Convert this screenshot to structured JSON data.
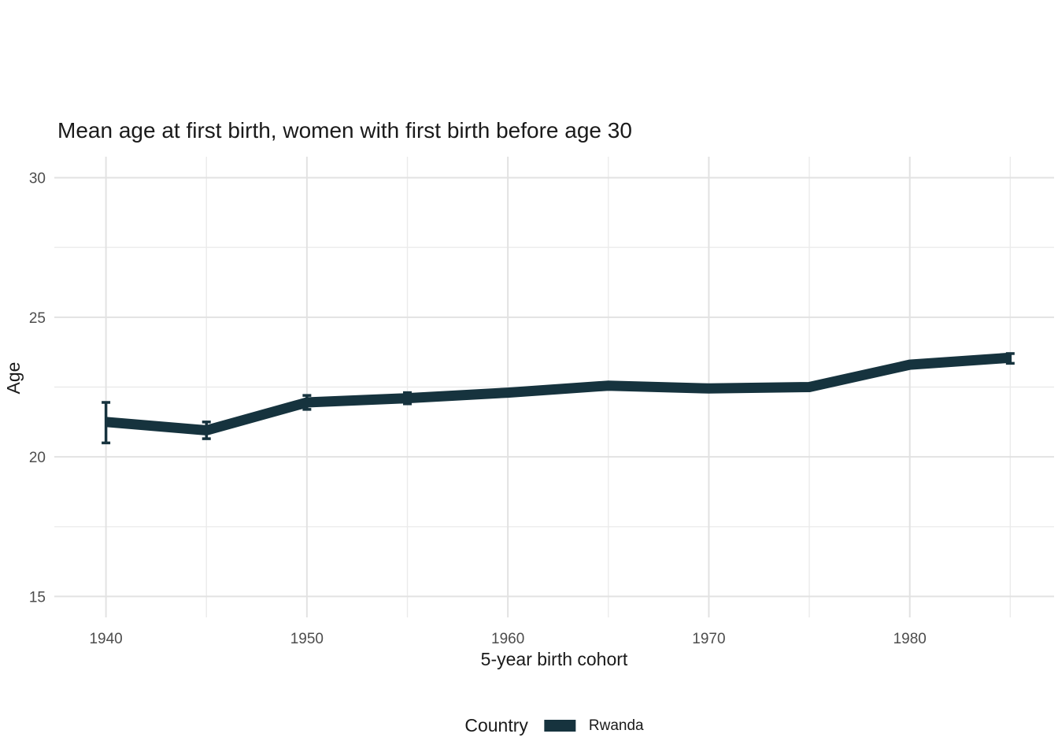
{
  "chart_data": {
    "type": "line",
    "title": "Mean age at first birth, women with first birth before age 30",
    "xlabel": "5-year birth cohort",
    "ylabel": "Age",
    "x": [
      1940,
      1945,
      1950,
      1955,
      1960,
      1965,
      1970,
      1975,
      1980,
      1985
    ],
    "series": [
      {
        "name": "Rwanda",
        "values": [
          21.25,
          20.95,
          21.95,
          22.1,
          22.3,
          22.55,
          22.45,
          22.5,
          23.3,
          23.55
        ],
        "ci_low": [
          20.5,
          20.65,
          21.7,
          21.9,
          22.2,
          22.45,
          22.35,
          22.4,
          23.2,
          23.35
        ],
        "ci_high": [
          21.95,
          21.25,
          22.2,
          22.3,
          22.4,
          22.65,
          22.55,
          22.6,
          23.4,
          23.7
        ]
      }
    ],
    "x_ticks_major": [
      1940,
      1950,
      1960,
      1970,
      1980
    ],
    "x_ticks_minor": [
      1945,
      1955,
      1965,
      1975,
      1985
    ],
    "y_ticks_major": [
      15,
      20,
      25,
      30
    ],
    "y_ticks_minor": [
      17.5,
      22.5,
      27.5
    ],
    "xlim": [
      1937.43,
      1987.18
    ],
    "ylim": [
      14.25,
      30.75
    ],
    "grid": true,
    "legend": {
      "title": "Country",
      "position": "bottom"
    },
    "colors": {
      "line": "#16333E",
      "grid_major": "#e2e2e2",
      "grid_minor": "#ebebeb",
      "tick_label": "#4d4d4d",
      "text": "#1a1a1a",
      "background": "#ffffff"
    }
  }
}
